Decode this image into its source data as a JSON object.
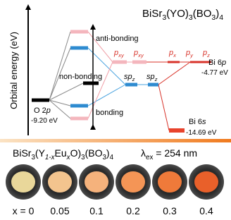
{
  "diagram": {
    "y_axis_label": "Orbital energy (eV)",
    "formula": [
      "BiSr",
      "3",
      "(YO)",
      "3",
      "(BO",
      "3",
      ")",
      "4"
    ],
    "bond_labels": {
      "anti": "anti-bonding",
      "non": "non-bonding",
      "bonding": "bonding"
    },
    "o2p": {
      "label": [
        "O 2",
        "p"
      ],
      "energy": "-9.20 eV"
    },
    "orbitals": {
      "pxy_1": [
        "p",
        "xy"
      ],
      "pxy_2": [
        "p",
        "xy"
      ],
      "px": [
        "p",
        "x"
      ],
      "py": [
        "p",
        "y"
      ],
      "pz": [
        "p",
        "z"
      ],
      "spz_1": [
        "sp",
        "z"
      ],
      "spz_2": [
        "sp",
        "z"
      ]
    },
    "bi6p": {
      "label": [
        "Bi 6",
        "p"
      ],
      "energy": "-4.77 eV"
    },
    "bi6s": {
      "label": [
        "Bi 6",
        "s"
      ],
      "energy": "-14.69 eV"
    }
  },
  "samples": {
    "formula": [
      "BiSr",
      "3",
      "(Y",
      "1-x",
      "Eu",
      "x",
      "O)",
      "3",
      "(BO",
      "3",
      ")",
      "4"
    ],
    "excitation": [
      "λ",
      "ex",
      " = 254 nm"
    ],
    "x_labels": [
      "x = 0",
      "0.05",
      "0.1",
      "0.2",
      "0.3",
      "0.4"
    ]
  }
}
